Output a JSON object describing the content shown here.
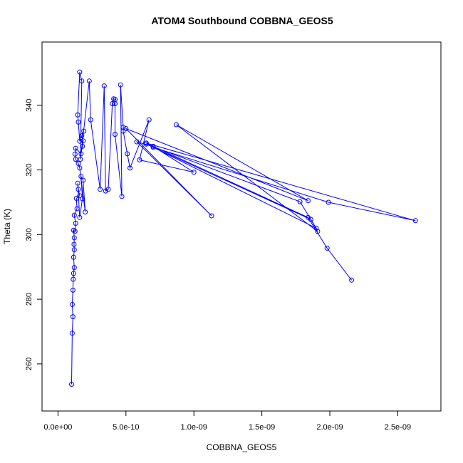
{
  "chart_data": {
    "type": "line",
    "title": "ATOM4 Southbound COBBNA_GEOS5",
    "xlabel": "COBBNA_GEOS5",
    "ylabel": "Theta (K)",
    "xlim": [
      0,
      2.7e-09
    ],
    "ylim": [
      250,
      355
    ],
    "x_ticks": [
      0,
      5e-10,
      1e-09,
      1.5e-09,
      2e-09,
      2.5e-09
    ],
    "x_tick_labels": [
      "0.0e+00",
      "5.0e-10",
      "1.0e-09",
      "1.5e-09",
      "2.0e-09",
      "2.5e-09"
    ],
    "y_ticks": [
      260,
      280,
      300,
      320,
      340
    ],
    "y_tick_labels": [
      "260",
      "280",
      "300",
      "320",
      "340"
    ],
    "grid": false,
    "marker": "open-circle",
    "color": "#0000ff",
    "series": [
      {
        "points": [
          [
            1e-10,
            253.7
          ],
          [
            1.05e-10,
            269.5
          ],
          [
            1.1e-10,
            274.6
          ],
          [
            1.05e-10,
            278.4
          ],
          [
            1.1e-10,
            282.8
          ],
          [
            1.12e-10,
            286.2
          ],
          [
            1.15e-10,
            288.0
          ],
          [
            1.2e-10,
            289.8
          ],
          [
            1.15e-10,
            293.0
          ],
          [
            1.2e-10,
            295.3
          ],
          [
            1.18e-10,
            297.0
          ],
          [
            1.2e-10,
            299.0
          ],
          [
            1.15e-10,
            301.3
          ],
          [
            1.25e-10,
            301.0
          ],
          [
            1.3e-10,
            303.5
          ],
          [
            1.2e-10,
            306.0
          ],
          [
            1.4e-10,
            308.0
          ],
          [
            1.35e-10,
            311.2
          ],
          [
            1.6e-10,
            312.0
          ],
          [
            1.5e-10,
            314.0
          ],
          [
            1.45e-10,
            315.9
          ],
          [
            1.6e-10,
            305.3
          ],
          [
            1.8e-10,
            311.1
          ],
          [
            1.7e-10,
            318.0
          ],
          [
            1.85e-10,
            316.8
          ],
          [
            2e-10,
            307.0
          ],
          [
            1.6e-10,
            320.6
          ],
          [
            1.5e-10,
            322.0
          ],
          [
            1.3e-10,
            323.3
          ],
          [
            1.25e-10,
            324.9
          ],
          [
            1.3e-10,
            326.7
          ],
          [
            1.7e-10,
            325.0
          ],
          [
            1.8e-10,
            327.3
          ],
          [
            1.85e-10,
            329.0
          ],
          [
            1.75e-10,
            330.6
          ],
          [
            1.9e-10,
            332.0
          ],
          [
            1.6e-10,
            328.9
          ],
          [
            1.5e-10,
            334.8
          ],
          [
            1.45e-10,
            337.0
          ],
          [
            1.6e-10,
            350.3
          ],
          [
            1.75e-10,
            347.5
          ],
          [
            1.65e-10,
            323.3
          ],
          [
            2.3e-10,
            347.5
          ],
          [
            2.4e-10,
            335.5
          ],
          [
            3.1e-10,
            314.0
          ],
          [
            3.4e-10,
            346.0
          ],
          [
            3.5e-10,
            313.5
          ],
          [
            3.7e-10,
            314.0
          ],
          [
            4e-10,
            340.5
          ],
          [
            4.1e-10,
            342.0
          ],
          [
            4.2e-10,
            341.8
          ],
          [
            4.2e-10,
            340.5
          ],
          [
            4.2e-10,
            331.0
          ],
          [
            4.7e-10,
            311.8
          ],
          [
            4.6e-10,
            346.3
          ],
          [
            4.8e-10,
            333.2
          ],
          [
            4.8e-10,
            332.0
          ],
          [
            5.1e-10,
            325.0
          ],
          [
            5.3e-10,
            320.6
          ],
          [
            6.7e-10,
            335.5
          ],
          [
            6e-10,
            323.1
          ],
          [
            1e-09,
            319.3
          ],
          [
            7e-10,
            327.3
          ],
          [
            5.8e-10,
            328.7
          ],
          [
            1.13e-09,
            305.8
          ],
          [
            5e-10,
            332.8
          ],
          [
            1.84e-09,
            310.5
          ],
          [
            8.7e-10,
            334.0
          ],
          [
            1.91e-09,
            301.0
          ],
          [
            1.86e-09,
            304.7
          ],
          [
            6.5e-10,
            328.0
          ],
          [
            1.78e-09,
            310.2
          ],
          [
            1.9e-09,
            302.0
          ],
          [
            7e-10,
            327.0
          ],
          [
            1.99e-09,
            310.0
          ],
          [
            2.63e-09,
            304.3
          ],
          [
            6.5e-10,
            328.3
          ],
          [
            1.84e-09,
            305.3
          ],
          [
            1.98e-09,
            295.8
          ],
          [
            2.16e-09,
            285.9
          ]
        ]
      }
    ]
  }
}
